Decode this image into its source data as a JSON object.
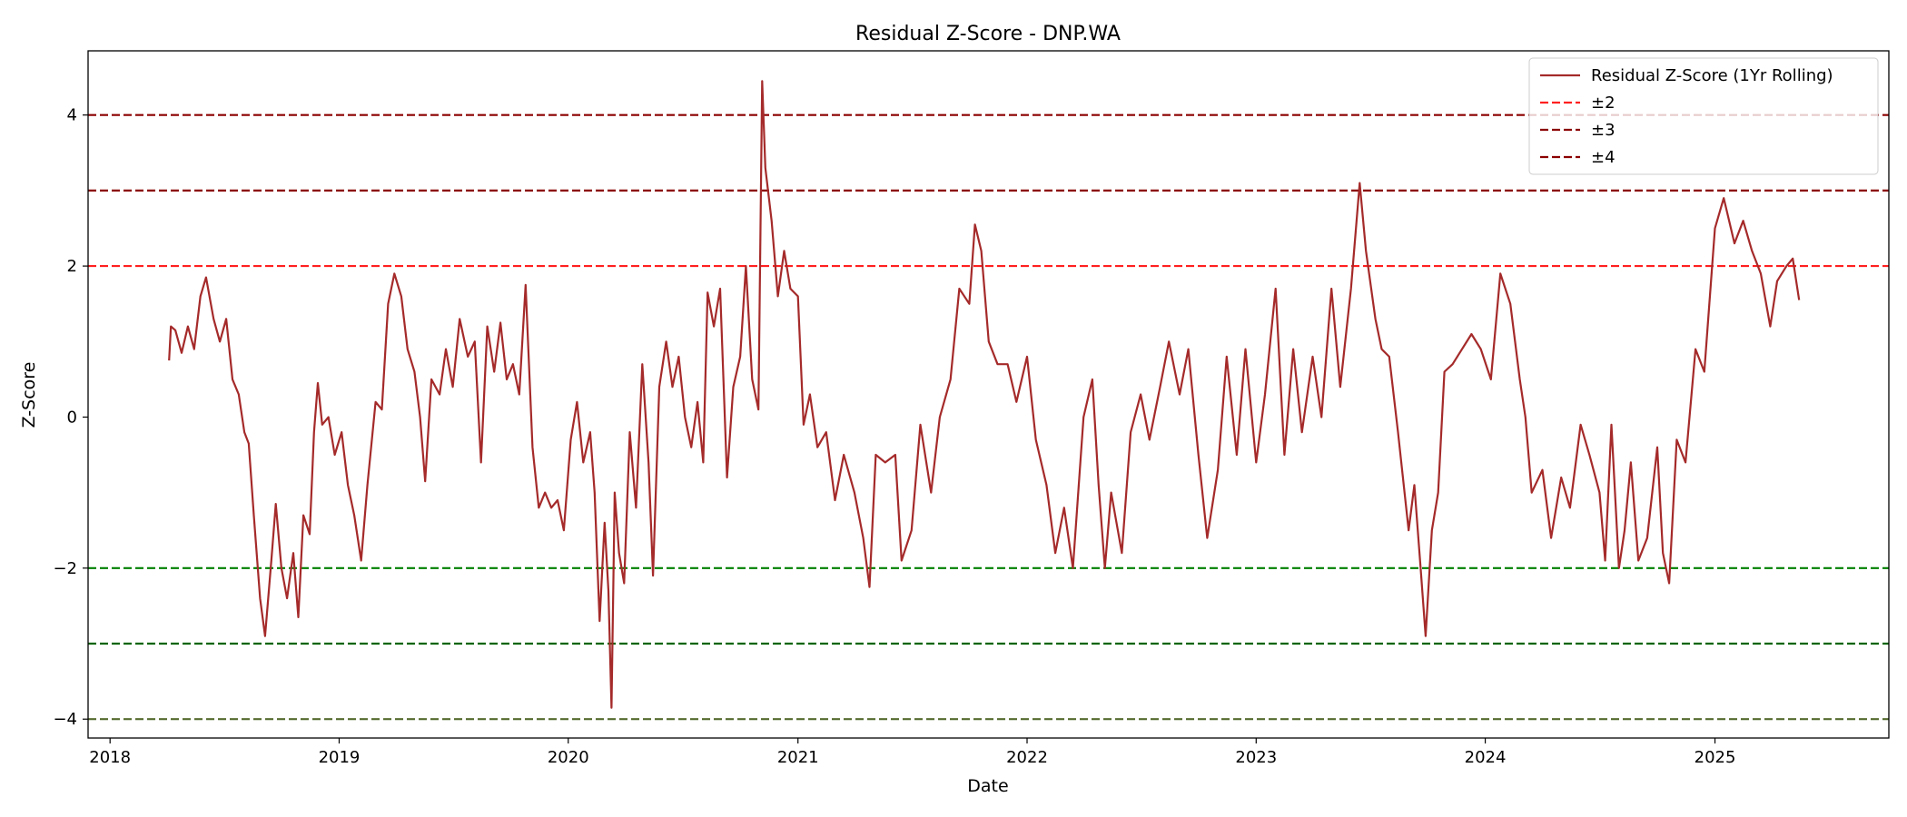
{
  "chart_data": {
    "type": "line",
    "title": "Residual Z-Score - DNP.WA",
    "xlabel": "Date",
    "ylabel": "Z-Score",
    "xlim": [
      "2017-11-27",
      "2025-10-05"
    ],
    "ylim": [
      -4.25,
      4.85
    ],
    "x_ticks": [
      "2018",
      "2019",
      "2020",
      "2021",
      "2022",
      "2023",
      "2024",
      "2025"
    ],
    "y_ticks": [
      {
        "value": -4,
        "label": "−4"
      },
      {
        "value": -2,
        "label": "−2"
      },
      {
        "value": 0,
        "label": "0"
      },
      {
        "value": 2,
        "label": "2"
      },
      {
        "value": 4,
        "label": "4"
      }
    ],
    "grid": false,
    "legend_position": "top-right",
    "series": [
      {
        "name": "Residual Z-Score (1Yr Rolling)",
        "color": "#a52a2a",
        "points": [
          [
            "2018-04-05",
            0.75
          ],
          [
            "2018-04-08",
            1.2
          ],
          [
            "2018-04-15",
            1.15
          ],
          [
            "2018-04-25",
            0.85
          ],
          [
            "2018-05-05",
            1.2
          ],
          [
            "2018-05-15",
            0.9
          ],
          [
            "2018-05-25",
            1.6
          ],
          [
            "2018-06-03",
            1.85
          ],
          [
            "2018-06-15",
            1.3
          ],
          [
            "2018-06-25",
            1.0
          ],
          [
            "2018-07-05",
            1.3
          ],
          [
            "2018-07-15",
            0.5
          ],
          [
            "2018-07-25",
            0.3
          ],
          [
            "2018-08-03",
            -0.2
          ],
          [
            "2018-08-10",
            -0.35
          ],
          [
            "2018-08-18",
            -1.3
          ],
          [
            "2018-08-28",
            -2.4
          ],
          [
            "2018-09-05",
            -2.9
          ],
          [
            "2018-09-15",
            -1.9
          ],
          [
            "2018-09-22",
            -1.15
          ],
          [
            "2018-10-01",
            -2.0
          ],
          [
            "2018-10-10",
            -2.4
          ],
          [
            "2018-10-20",
            -1.8
          ],
          [
            "2018-10-28",
            -2.65
          ],
          [
            "2018-11-05",
            -1.3
          ],
          [
            "2018-11-15",
            -1.55
          ],
          [
            "2018-11-22",
            -0.2
          ],
          [
            "2018-11-28",
            0.45
          ],
          [
            "2018-12-05",
            -0.1
          ],
          [
            "2018-12-15",
            0.0
          ],
          [
            "2018-12-25",
            -0.5
          ],
          [
            "2019-01-05",
            -0.2
          ],
          [
            "2019-01-15",
            -0.9
          ],
          [
            "2019-01-25",
            -1.3
          ],
          [
            "2019-02-05",
            -1.9
          ],
          [
            "2019-02-15",
            -0.9
          ],
          [
            "2019-02-28",
            0.2
          ],
          [
            "2019-03-10",
            0.1
          ],
          [
            "2019-03-20",
            1.5
          ],
          [
            "2019-03-30",
            1.9
          ],
          [
            "2019-04-10",
            1.6
          ],
          [
            "2019-04-20",
            0.9
          ],
          [
            "2019-05-01",
            0.6
          ],
          [
            "2019-05-10",
            0.0
          ],
          [
            "2019-05-18",
            -0.85
          ],
          [
            "2019-05-28",
            0.5
          ],
          [
            "2019-06-10",
            0.3
          ],
          [
            "2019-06-20",
            0.9
          ],
          [
            "2019-07-01",
            0.4
          ],
          [
            "2019-07-12",
            1.3
          ],
          [
            "2019-07-25",
            0.8
          ],
          [
            "2019-08-05",
            1.0
          ],
          [
            "2019-08-15",
            -0.6
          ],
          [
            "2019-08-25",
            1.2
          ],
          [
            "2019-09-05",
            0.6
          ],
          [
            "2019-09-15",
            1.25
          ],
          [
            "2019-09-25",
            0.5
          ],
          [
            "2019-10-05",
            0.7
          ],
          [
            "2019-10-15",
            0.3
          ],
          [
            "2019-10-25",
            1.75
          ],
          [
            "2019-11-05",
            -0.4
          ],
          [
            "2019-11-15",
            -1.2
          ],
          [
            "2019-11-25",
            -1.0
          ],
          [
            "2019-12-05",
            -1.2
          ],
          [
            "2019-12-15",
            -1.1
          ],
          [
            "2019-12-25",
            -1.5
          ],
          [
            "2020-01-05",
            -0.3
          ],
          [
            "2020-01-15",
            0.2
          ],
          [
            "2020-01-25",
            -0.6
          ],
          [
            "2020-02-05",
            -0.2
          ],
          [
            "2020-02-12",
            -1.0
          ],
          [
            "2020-02-20",
            -2.7
          ],
          [
            "2020-02-28",
            -1.4
          ],
          [
            "2020-03-05",
            -2.3
          ],
          [
            "2020-03-10",
            -3.85
          ],
          [
            "2020-03-15",
            -1.0
          ],
          [
            "2020-03-22",
            -1.8
          ],
          [
            "2020-03-30",
            -2.2
          ],
          [
            "2020-04-08",
            -0.2
          ],
          [
            "2020-04-18",
            -1.2
          ],
          [
            "2020-04-28",
            0.7
          ],
          [
            "2020-05-08",
            -0.6
          ],
          [
            "2020-05-15",
            -2.1
          ],
          [
            "2020-05-25",
            0.4
          ],
          [
            "2020-06-05",
            1.0
          ],
          [
            "2020-06-15",
            0.4
          ],
          [
            "2020-06-25",
            0.8
          ],
          [
            "2020-07-05",
            0.0
          ],
          [
            "2020-07-15",
            -0.4
          ],
          [
            "2020-07-25",
            0.2
          ],
          [
            "2020-08-03",
            -0.6
          ],
          [
            "2020-08-10",
            1.65
          ],
          [
            "2020-08-20",
            1.2
          ],
          [
            "2020-08-30",
            1.7
          ],
          [
            "2020-09-10",
            -0.8
          ],
          [
            "2020-09-20",
            0.4
          ],
          [
            "2020-10-01",
            0.8
          ],
          [
            "2020-10-10",
            2.0
          ],
          [
            "2020-10-20",
            0.5
          ],
          [
            "2020-10-30",
            0.1
          ],
          [
            "2020-11-05",
            4.45
          ],
          [
            "2020-11-10",
            3.3
          ],
          [
            "2020-11-20",
            2.6
          ],
          [
            "2020-11-30",
            1.6
          ],
          [
            "2020-12-10",
            2.2
          ],
          [
            "2020-12-20",
            1.7
          ],
          [
            "2021-01-01",
            1.6
          ],
          [
            "2021-01-10",
            -0.1
          ],
          [
            "2021-01-20",
            0.3
          ],
          [
            "2021-02-01",
            -0.4
          ],
          [
            "2021-02-15",
            -0.2
          ],
          [
            "2021-03-01",
            -1.1
          ],
          [
            "2021-03-15",
            -0.5
          ],
          [
            "2021-04-01",
            -1.0
          ],
          [
            "2021-04-15",
            -1.6
          ],
          [
            "2021-04-25",
            -2.25
          ],
          [
            "2021-05-05",
            -0.5
          ],
          [
            "2021-05-20",
            -0.6
          ],
          [
            "2021-06-05",
            -0.5
          ],
          [
            "2021-06-15",
            -1.9
          ],
          [
            "2021-07-01",
            -1.5
          ],
          [
            "2021-07-15",
            -0.1
          ],
          [
            "2021-08-01",
            -1.0
          ],
          [
            "2021-08-15",
            0.0
          ],
          [
            "2021-09-01",
            0.5
          ],
          [
            "2021-09-15",
            1.7
          ],
          [
            "2021-10-01",
            1.5
          ],
          [
            "2021-10-10",
            2.55
          ],
          [
            "2021-10-20",
            2.2
          ],
          [
            "2021-11-01",
            1.0
          ],
          [
            "2021-11-15",
            0.7
          ],
          [
            "2021-12-01",
            0.7
          ],
          [
            "2021-12-15",
            0.2
          ],
          [
            "2022-01-01",
            0.8
          ],
          [
            "2022-01-15",
            -0.3
          ],
          [
            "2022-02-01",
            -0.9
          ],
          [
            "2022-02-15",
            -1.8
          ],
          [
            "2022-03-01",
            -1.2
          ],
          [
            "2022-03-15",
            -2.0
          ],
          [
            "2022-04-01",
            0.0
          ],
          [
            "2022-04-15",
            0.5
          ],
          [
            "2022-04-25",
            -0.9
          ],
          [
            "2022-05-05",
            -2.0
          ],
          [
            "2022-05-15",
            -1.0
          ],
          [
            "2022-06-01",
            -1.8
          ],
          [
            "2022-06-15",
            -0.2
          ],
          [
            "2022-07-01",
            0.3
          ],
          [
            "2022-07-15",
            -0.3
          ],
          [
            "2022-08-01",
            0.4
          ],
          [
            "2022-08-15",
            1.0
          ],
          [
            "2022-09-01",
            0.3
          ],
          [
            "2022-09-15",
            0.9
          ],
          [
            "2022-10-01",
            -0.5
          ],
          [
            "2022-10-15",
            -1.6
          ],
          [
            "2022-11-01",
            -0.7
          ],
          [
            "2022-11-15",
            0.8
          ],
          [
            "2022-12-01",
            -0.5
          ],
          [
            "2022-12-15",
            0.9
          ],
          [
            "2023-01-01",
            -0.6
          ],
          [
            "2023-01-15",
            0.3
          ],
          [
            "2023-02-01",
            1.7
          ],
          [
            "2023-02-15",
            -0.5
          ],
          [
            "2023-03-01",
            0.9
          ],
          [
            "2023-03-15",
            -0.2
          ],
          [
            "2023-04-01",
            0.8
          ],
          [
            "2023-04-15",
            0.0
          ],
          [
            "2023-05-01",
            1.7
          ],
          [
            "2023-05-15",
            0.4
          ],
          [
            "2023-06-01",
            1.7
          ],
          [
            "2023-06-15",
            3.1
          ],
          [
            "2023-06-25",
            2.2
          ],
          [
            "2023-07-10",
            1.3
          ],
          [
            "2023-07-20",
            0.9
          ],
          [
            "2023-08-01",
            0.8
          ],
          [
            "2023-08-15",
            -0.2
          ],
          [
            "2023-09-01",
            -1.5
          ],
          [
            "2023-09-10",
            -0.9
          ],
          [
            "2023-09-20",
            -2.0
          ],
          [
            "2023-09-28",
            -2.9
          ],
          [
            "2023-10-08",
            -1.5
          ],
          [
            "2023-10-18",
            -1.0
          ],
          [
            "2023-10-28",
            0.6
          ],
          [
            "2023-11-10",
            0.7
          ],
          [
            "2023-11-25",
            0.9
          ],
          [
            "2023-12-10",
            1.1
          ],
          [
            "2023-12-25",
            0.9
          ],
          [
            "2024-01-10",
            0.5
          ],
          [
            "2024-01-25",
            1.9
          ],
          [
            "2024-02-10",
            1.5
          ],
          [
            "2024-02-25",
            0.5
          ],
          [
            "2024-03-05",
            0.0
          ],
          [
            "2024-03-15",
            -1.0
          ],
          [
            "2024-04-01",
            -0.7
          ],
          [
            "2024-04-15",
            -1.6
          ],
          [
            "2024-05-01",
            -0.8
          ],
          [
            "2024-05-15",
            -1.2
          ],
          [
            "2024-06-01",
            -0.1
          ],
          [
            "2024-06-15",
            -0.5
          ],
          [
            "2024-07-01",
            -1.0
          ],
          [
            "2024-07-10",
            -1.9
          ],
          [
            "2024-07-20",
            -0.1
          ],
          [
            "2024-08-01",
            -2.0
          ],
          [
            "2024-08-10",
            -1.5
          ],
          [
            "2024-08-20",
            -0.6
          ],
          [
            "2024-09-01",
            -1.9
          ],
          [
            "2024-09-15",
            -1.6
          ],
          [
            "2024-10-01",
            -0.4
          ],
          [
            "2024-10-10",
            -1.8
          ],
          [
            "2024-10-20",
            -2.2
          ],
          [
            "2024-11-01",
            -0.3
          ],
          [
            "2024-11-15",
            -0.6
          ],
          [
            "2024-12-01",
            0.9
          ],
          [
            "2024-12-15",
            0.6
          ],
          [
            "2025-01-01",
            2.5
          ],
          [
            "2025-01-15",
            2.9
          ],
          [
            "2025-02-01",
            2.3
          ],
          [
            "2025-02-15",
            2.6
          ],
          [
            "2025-03-01",
            2.2
          ],
          [
            "2025-03-15",
            1.9
          ],
          [
            "2025-03-30",
            1.2
          ],
          [
            "2025-04-10",
            1.8
          ],
          [
            "2025-04-25",
            2.0
          ],
          [
            "2025-05-05",
            2.1
          ],
          [
            "2025-05-15",
            1.55
          ]
        ]
      }
    ],
    "reference_lines": [
      {
        "name": "±2",
        "values": [
          2,
          -2
        ],
        "colors": [
          "#ff2020",
          "#008000"
        ],
        "in_legend": true
      },
      {
        "name": "±3",
        "values": [
          3,
          -3
        ],
        "colors": [
          "#8b0000",
          "#006400"
        ],
        "in_legend": true
      },
      {
        "name": "±4",
        "values": [
          4,
          -4
        ],
        "colors": [
          "#8b0000",
          "#556b2f"
        ],
        "in_legend": true
      }
    ]
  }
}
